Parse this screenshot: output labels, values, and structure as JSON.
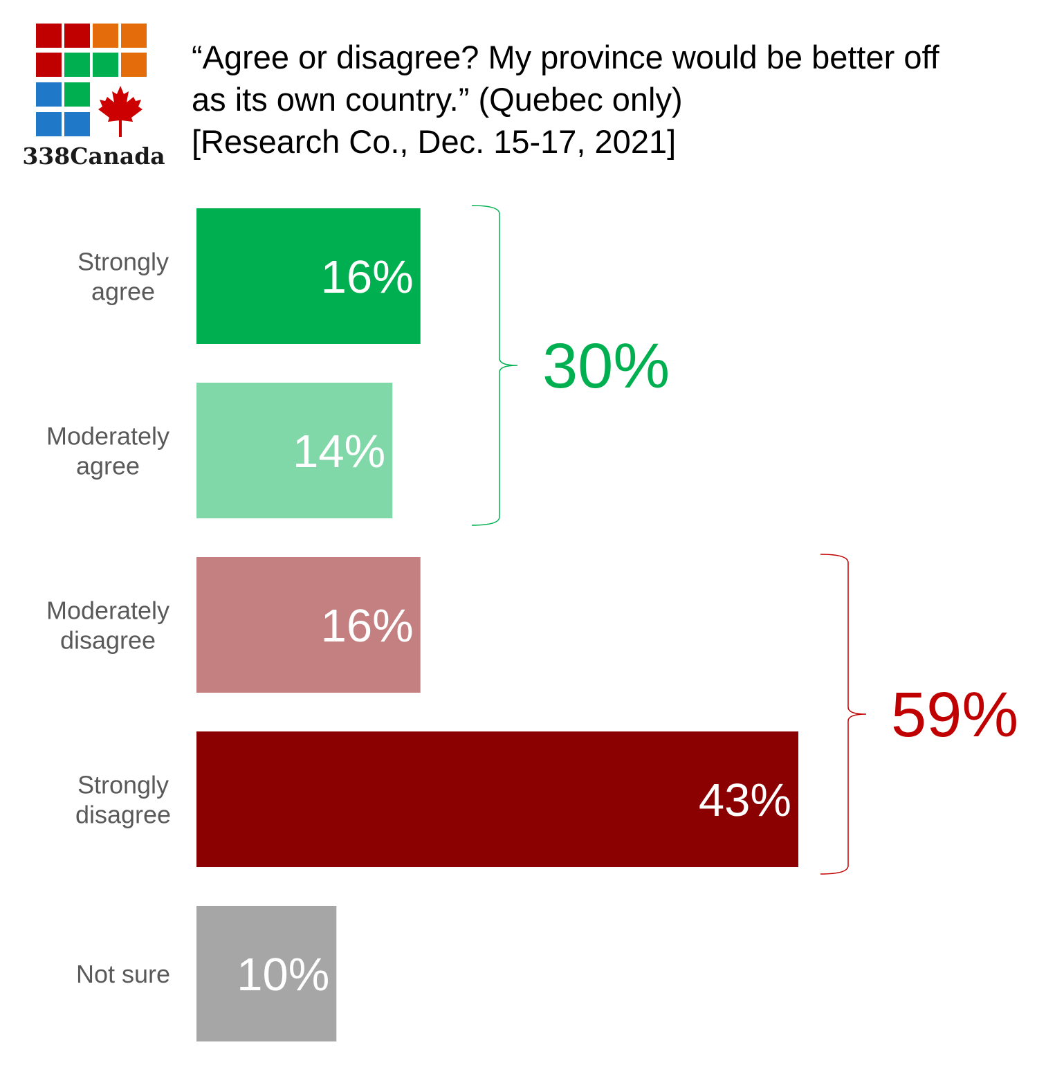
{
  "logo": {
    "text": "338Canada"
  },
  "title": {
    "line1": "“Agree or disagree? My province would be better off",
    "line2": "as its own country.” (Quebec only)",
    "line3": "[Research Co., Dec. 15-17, 2021]"
  },
  "colors": {
    "strongly_agree": "#00b050",
    "moderately_agree": "#80d8a8",
    "moderately_disagree": "#c48080",
    "strongly_disagree": "#8b0000",
    "not_sure": "#a6a6a6",
    "agree_group": "#00b050",
    "disagree_group": "#c00000",
    "category_text": "#595959"
  },
  "chart_data": {
    "type": "bar",
    "orientation": "horizontal",
    "title": "“Agree or disagree? My province would be better off as its own country.” (Quebec only) [Research Co., Dec. 15-17, 2021]",
    "categories": [
      [
        "Strongly",
        "agree"
      ],
      [
        "Moderately",
        "agree"
      ],
      [
        "Moderately",
        "disagree"
      ],
      [
        "Strongly",
        "disagree"
      ],
      [
        "Not sure"
      ]
    ],
    "values": [
      16,
      14,
      16,
      43,
      10
    ],
    "value_labels": [
      "16%",
      "14%",
      "16%",
      "43%",
      "10%"
    ],
    "bar_colors": [
      "#00b050",
      "#80d8a8",
      "#c48080",
      "#8b0000",
      "#a6a6a6"
    ],
    "xlim": [
      0,
      43
    ],
    "grid": false,
    "groups": [
      {
        "label": "30%",
        "value": 30,
        "from": 0,
        "to": 1,
        "color": "#00b050"
      },
      {
        "label": "59%",
        "value": 59,
        "from": 2,
        "to": 3,
        "color": "#c00000"
      }
    ]
  }
}
